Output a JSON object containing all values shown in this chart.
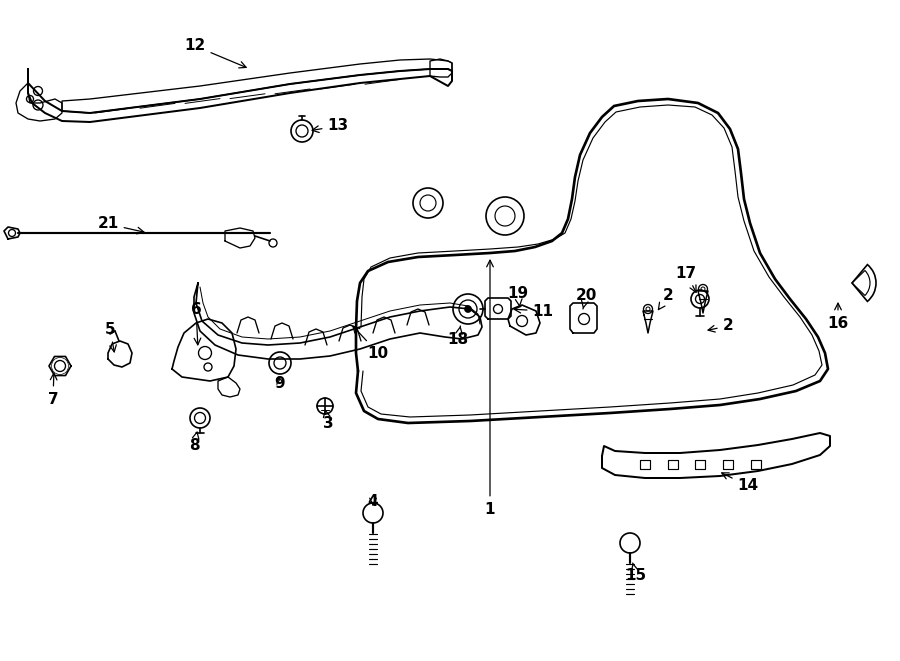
{
  "bg_color": "#ffffff",
  "line_color": "#000000",
  "lw": 1.2,
  "fs": 11,
  "figsize": [
    9.0,
    6.61
  ],
  "dpi": 100,
  "xlim": [
    0,
    900
  ],
  "ylim": [
    0,
    661
  ]
}
